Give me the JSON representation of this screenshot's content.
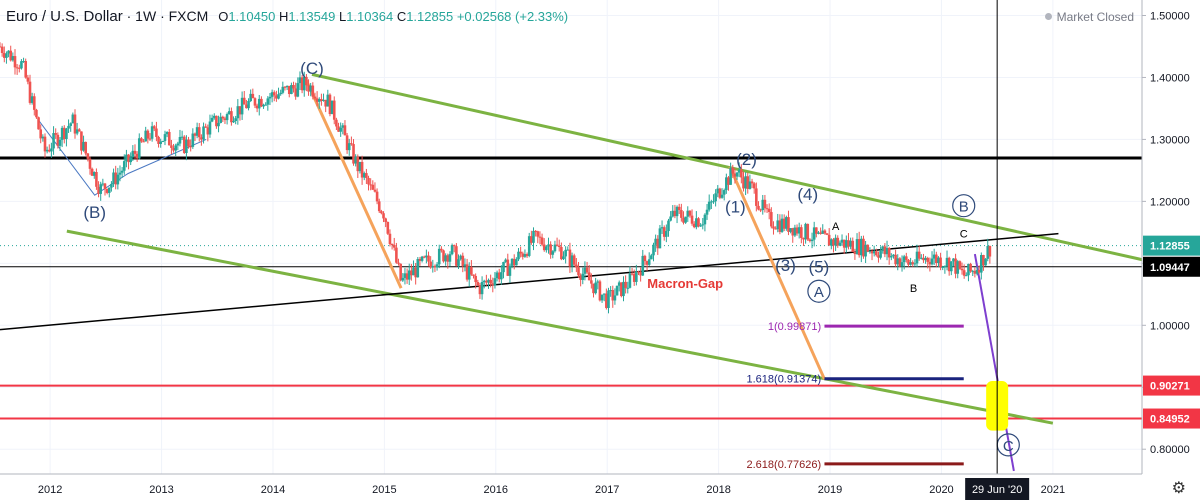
{
  "header": {
    "symbol": "Euro / U.S. Dollar",
    "interval": "1W",
    "exchange": "FXCM",
    "open_label": "O",
    "open": "1.10450",
    "high_label": "H",
    "high": "1.13549",
    "low_label": "L",
    "low": "1.10364",
    "close_label": "C",
    "close": "1.12855",
    "change": "+0.02568 (+2.33%)",
    "up_color": "#26a69a"
  },
  "status": {
    "market": "Market Closed"
  },
  "settings_icon": "gear-icon",
  "chart_data": {
    "type": "candlestick",
    "x_axis": {
      "ticks": [
        "2012",
        "2013",
        "2014",
        "2015",
        "2016",
        "2017",
        "2018",
        "2019",
        "2020",
        "2021"
      ],
      "cursor_label": "29 Jun '20"
    },
    "y_axis": {
      "ticks": [
        "0.80000",
        "0.90000",
        "1.00000",
        "1.10000",
        "1.20000",
        "1.30000",
        "1.40000",
        "1.50000"
      ],
      "range": [
        0.76,
        1.525
      ]
    },
    "price_path": [
      [
        2011.55,
        1.45
      ],
      [
        2011.75,
        1.42
      ],
      [
        2011.95,
        1.28
      ],
      [
        2012.2,
        1.33
      ],
      [
        2012.45,
        1.22
      ],
      [
        2012.55,
        1.23
      ],
      [
        2012.9,
        1.31
      ],
      [
        2013.2,
        1.29
      ],
      [
        2013.5,
        1.33
      ],
      [
        2013.8,
        1.36
      ],
      [
        2014.15,
        1.38
      ],
      [
        2014.3,
        1.39
      ],
      [
        2014.5,
        1.36
      ],
      [
        2014.75,
        1.26
      ],
      [
        2015.0,
        1.18
      ],
      [
        2015.15,
        1.07
      ],
      [
        2015.35,
        1.1
      ],
      [
        2015.6,
        1.12
      ],
      [
        2015.85,
        1.06
      ],
      [
        2016.15,
        1.1
      ],
      [
        2016.35,
        1.14
      ],
      [
        2016.6,
        1.12
      ],
      [
        2016.85,
        1.07
      ],
      [
        2017.0,
        1.04
      ],
      [
        2017.2,
        1.07
      ],
      [
        2017.4,
        1.12
      ],
      [
        2017.6,
        1.18
      ],
      [
        2017.85,
        1.17
      ],
      [
        2018.05,
        1.23
      ],
      [
        2018.15,
        1.25
      ],
      [
        2018.3,
        1.22
      ],
      [
        2018.45,
        1.17
      ],
      [
        2018.65,
        1.16
      ],
      [
        2018.9,
        1.14
      ],
      [
        2019.2,
        1.13
      ],
      [
        2019.45,
        1.12
      ],
      [
        2019.7,
        1.1
      ],
      [
        2019.9,
        1.11
      ],
      [
        2020.1,
        1.1
      ],
      [
        2020.2,
        1.08
      ],
      [
        2020.3,
        1.09
      ],
      [
        2020.45,
        1.12855
      ]
    ],
    "price_labels": [
      {
        "value": 1.12855,
        "text": "1.12855",
        "color": "#26a69a"
      },
      {
        "value": 1.09447,
        "text": "1.09447",
        "color": "#000000"
      },
      {
        "value": 0.90271,
        "text": "0.90271",
        "color": "#f23645"
      },
      {
        "value": 0.84952,
        "text": "0.84952",
        "color": "#f23645"
      }
    ],
    "horizontal_lines": [
      {
        "value": 1.27,
        "color": "#000000"
      },
      {
        "value": 1.09447,
        "color": "#000000"
      },
      {
        "value": 0.90271,
        "color": "#f23645"
      },
      {
        "value": 0.84952,
        "color": "#f23645"
      }
    ],
    "fib_levels": [
      {
        "text": "1(0.99871)",
        "value": 0.99871,
        "color": "#9c27b0"
      },
      {
        "text": "1.618(0.91374)",
        "value": 0.91374,
        "color": "#1a237e"
      },
      {
        "text": "2.618(0.77626)",
        "value": 0.77626,
        "color": "#8b1a1a"
      }
    ],
    "wave_labels": [
      {
        "text": "(C)",
        "x": 2014.35,
        "y": 1.415
      },
      {
        "text": "(B)",
        "x": 2012.4,
        "y": 1.183
      },
      {
        "text": "(2)",
        "x": 2018.25,
        "y": 1.268
      },
      {
        "text": "(4)",
        "x": 2018.8,
        "y": 1.212
      },
      {
        "text": "(1)",
        "x": 2018.15,
        "y": 1.192
      },
      {
        "text": "(3)",
        "x": 2018.6,
        "y": 1.097
      },
      {
        "text": "(5)",
        "x": 2018.9,
        "y": 1.095
      },
      {
        "text": "A",
        "x": 2018.9,
        "y": 1.055,
        "circled": true
      },
      {
        "text": "B",
        "x": 2020.2,
        "y": 1.193,
        "circled": true
      },
      {
        "text": "C",
        "x": 2020.6,
        "y": 0.807,
        "circled": true
      },
      {
        "text": "A",
        "x": 2019.05,
        "y": 1.16,
        "small": true
      },
      {
        "text": "B",
        "x": 2019.75,
        "y": 1.06,
        "small": true
      },
      {
        "text": "C",
        "x": 2020.2,
        "y": 1.148,
        "small": true
      }
    ],
    "annotations": [
      {
        "text": "Macron-Gap",
        "x": 2017.7,
        "y": 1.06,
        "color": "#e53935"
      }
    ],
    "highlight": {
      "x": 2020.5,
      "y_low": 0.83,
      "y_high": 0.91,
      "color": "#ffff00"
    },
    "colors": {
      "up": "#26a69a",
      "down": "#ef5350",
      "channel": "#7cb342",
      "fib_arrow": "#f5a35b",
      "projection": "#7e3fcf"
    }
  }
}
